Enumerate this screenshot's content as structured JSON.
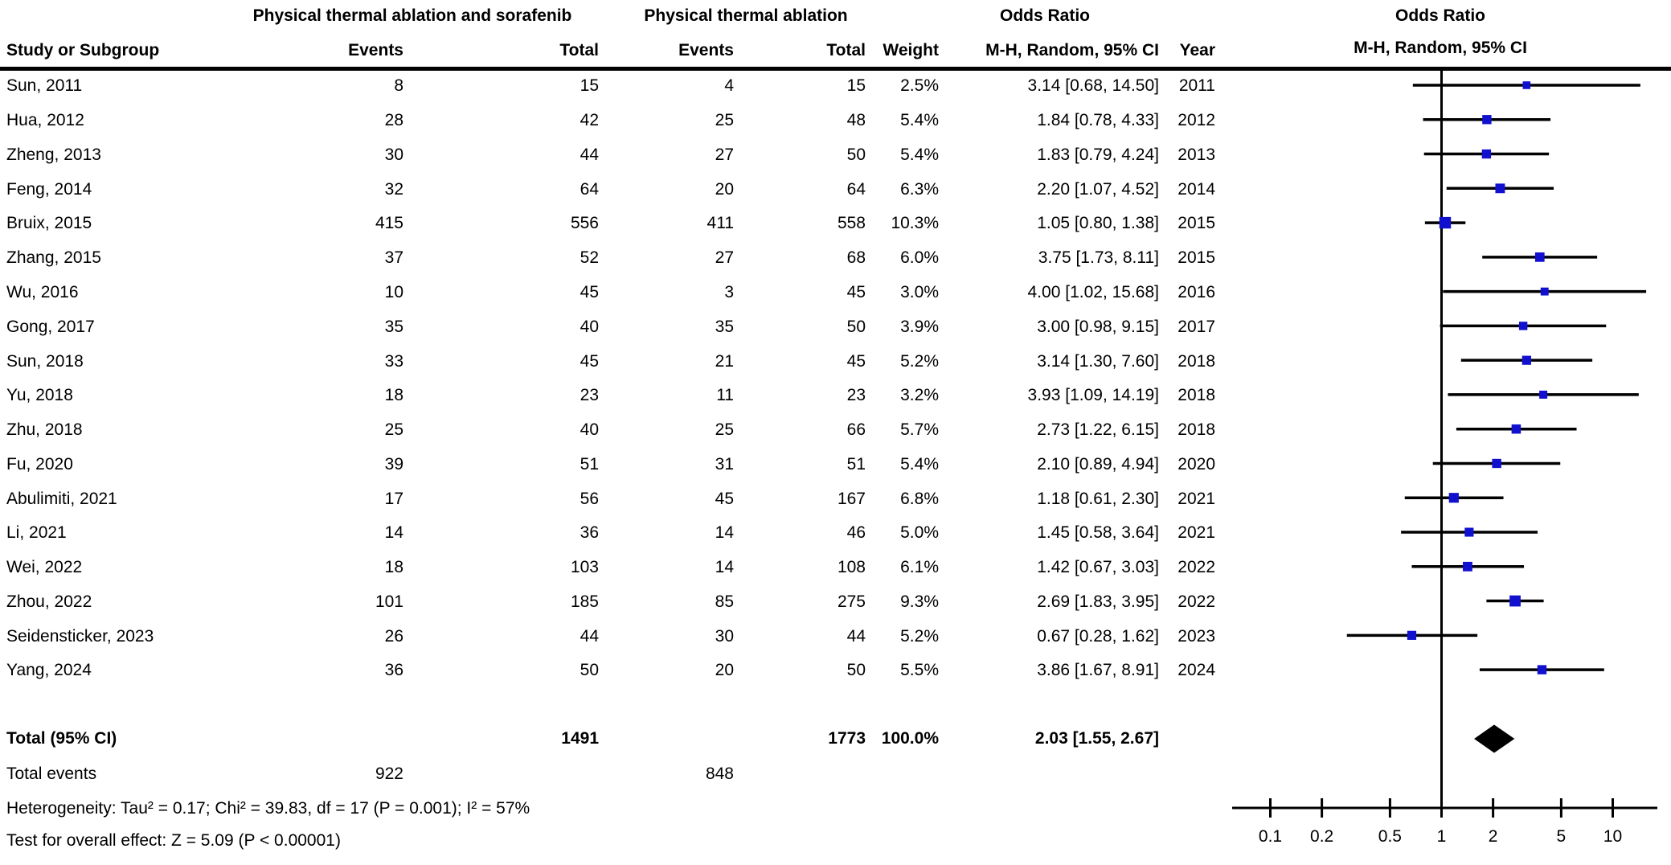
{
  "figure": {
    "header": {
      "group1": "Physical thermal ablation and sorafenib",
      "group2": "Physical thermal ablation",
      "or_table_title": "Odds Ratio",
      "or_plot_title": "Odds Ratio",
      "plot_subheader": "M-H, Random, 95% CI",
      "columns": {
        "study": "Study or Subgroup",
        "events1": "Events",
        "total1": "Total",
        "events2": "Events",
        "total2": "Total",
        "weight": "Weight",
        "or_ci": "M-H, Random, 95% CI",
        "year": "Year"
      }
    },
    "totals": {
      "label": "Total (95% CI)",
      "total1": "1491",
      "total2": "1773",
      "weight": "100.0%",
      "or_ci": "2.03 [1.55, 2.67]",
      "events_label": "Total events",
      "events1": "922",
      "events2": "848"
    },
    "footer": {
      "heterogeneity": "Heterogeneity: Tau² = 0.17; Chi² = 39.83, df = 17 (P = 0.001); I² = 57%",
      "overall_effect": "Test for overall effect: Z = 5.09 (P < 0.00001)"
    }
  },
  "rows": [
    {
      "study": "Sun, 2011",
      "events1": "8",
      "total1": "15",
      "events2": "4",
      "total2": "15",
      "weight": "2.5%",
      "or_ci": "3.14 [0.68, 14.50]",
      "year": "2011"
    },
    {
      "study": "Hua, 2012",
      "events1": "28",
      "total1": "42",
      "events2": "25",
      "total2": "48",
      "weight": "5.4%",
      "or_ci": "1.84 [0.78, 4.33]",
      "year": "2012"
    },
    {
      "study": "Zheng, 2013",
      "events1": "30",
      "total1": "44",
      "events2": "27",
      "total2": "50",
      "weight": "5.4%",
      "or_ci": "1.83 [0.79, 4.24]",
      "year": "2013"
    },
    {
      "study": "Feng, 2014",
      "events1": "32",
      "total1": "64",
      "events2": "20",
      "total2": "64",
      "weight": "6.3%",
      "or_ci": "2.20 [1.07, 4.52]",
      "year": "2014"
    },
    {
      "study": "Bruix, 2015",
      "events1": "415",
      "total1": "556",
      "events2": "411",
      "total2": "558",
      "weight": "10.3%",
      "or_ci": "1.05 [0.80, 1.38]",
      "year": "2015"
    },
    {
      "study": "Zhang, 2015",
      "events1": "37",
      "total1": "52",
      "events2": "27",
      "total2": "68",
      "weight": "6.0%",
      "or_ci": "3.75 [1.73, 8.11]",
      "year": "2015"
    },
    {
      "study": "Wu, 2016",
      "events1": "10",
      "total1": "45",
      "events2": "3",
      "total2": "45",
      "weight": "3.0%",
      "or_ci": "4.00 [1.02, 15.68]",
      "year": "2016"
    },
    {
      "study": "Gong, 2017",
      "events1": "35",
      "total1": "40",
      "events2": "35",
      "total2": "50",
      "weight": "3.9%",
      "or_ci": "3.00 [0.98, 9.15]",
      "year": "2017"
    },
    {
      "study": "Sun, 2018",
      "events1": "33",
      "total1": "45",
      "events2": "21",
      "total2": "45",
      "weight": "5.2%",
      "or_ci": "3.14 [1.30, 7.60]",
      "year": "2018"
    },
    {
      "study": "Yu, 2018",
      "events1": "18",
      "total1": "23",
      "events2": "11",
      "total2": "23",
      "weight": "3.2%",
      "or_ci": "3.93 [1.09, 14.19]",
      "year": "2018"
    },
    {
      "study": "Zhu, 2018",
      "events1": "25",
      "total1": "40",
      "events2": "25",
      "total2": "66",
      "weight": "5.7%",
      "or_ci": "2.73 [1.22, 6.15]",
      "year": "2018"
    },
    {
      "study": "Fu, 2020",
      "events1": "39",
      "total1": "51",
      "events2": "31",
      "total2": "51",
      "weight": "5.4%",
      "or_ci": "2.10 [0.89, 4.94]",
      "year": "2020"
    },
    {
      "study": "Abulimiti, 2021",
      "events1": "17",
      "total1": "56",
      "events2": "45",
      "total2": "167",
      "weight": "6.8%",
      "or_ci": "1.18 [0.61, 2.30]",
      "year": "2021"
    },
    {
      "study": "Li, 2021",
      "events1": "14",
      "total1": "36",
      "events2": "14",
      "total2": "46",
      "weight": "5.0%",
      "or_ci": "1.45 [0.58, 3.64]",
      "year": "2021"
    },
    {
      "study": "Wei, 2022",
      "events1": "18",
      "total1": "103",
      "events2": "14",
      "total2": "108",
      "weight": "6.1%",
      "or_ci": "1.42 [0.67, 3.03]",
      "year": "2022"
    },
    {
      "study": "Zhou, 2022",
      "events1": "101",
      "total1": "185",
      "events2": "85",
      "total2": "275",
      "weight": "9.3%",
      "or_ci": "2.69 [1.83, 3.95]",
      "year": "2022"
    },
    {
      "study": "Seidensticker, 2023",
      "events1": "26",
      "total1": "44",
      "events2": "30",
      "total2": "44",
      "weight": "5.2%",
      "or_ci": "0.67 [0.28, 1.62]",
      "year": "2023"
    },
    {
      "study": "Yang, 2024",
      "events1": "36",
      "total1": "50",
      "events2": "20",
      "total2": "50",
      "weight": "5.5%",
      "or_ci": "3.86 [1.67, 8.91]",
      "year": "2024"
    }
  ],
  "chart_data": {
    "type": "forest",
    "title": "Odds Ratio",
    "effect_measure": "M-H, Random, 95% CI",
    "x_scale": "log",
    "x_ticks": [
      0.1,
      0.2,
      0.5,
      1,
      2,
      5,
      10
    ],
    "null_line": 1,
    "studies": [
      {
        "name": "Sun, 2011",
        "or": 3.14,
        "ci_low": 0.68,
        "ci_high": 14.5,
        "weight_pct": 2.5
      },
      {
        "name": "Hua, 2012",
        "or": 1.84,
        "ci_low": 0.78,
        "ci_high": 4.33,
        "weight_pct": 5.4
      },
      {
        "name": "Zheng, 2013",
        "or": 1.83,
        "ci_low": 0.79,
        "ci_high": 4.24,
        "weight_pct": 5.4
      },
      {
        "name": "Feng, 2014",
        "or": 2.2,
        "ci_low": 1.07,
        "ci_high": 4.52,
        "weight_pct": 6.3
      },
      {
        "name": "Bruix, 2015",
        "or": 1.05,
        "ci_low": 0.8,
        "ci_high": 1.38,
        "weight_pct": 10.3
      },
      {
        "name": "Zhang, 2015",
        "or": 3.75,
        "ci_low": 1.73,
        "ci_high": 8.11,
        "weight_pct": 6.0
      },
      {
        "name": "Wu, 2016",
        "or": 4.0,
        "ci_low": 1.02,
        "ci_high": 15.68,
        "weight_pct": 3.0
      },
      {
        "name": "Gong, 2017",
        "or": 3.0,
        "ci_low": 0.98,
        "ci_high": 9.15,
        "weight_pct": 3.9
      },
      {
        "name": "Sun, 2018",
        "or": 3.14,
        "ci_low": 1.3,
        "ci_high": 7.6,
        "weight_pct": 5.2
      },
      {
        "name": "Yu, 2018",
        "or": 3.93,
        "ci_low": 1.09,
        "ci_high": 14.19,
        "weight_pct": 3.2
      },
      {
        "name": "Zhu, 2018",
        "or": 2.73,
        "ci_low": 1.22,
        "ci_high": 6.15,
        "weight_pct": 5.7
      },
      {
        "name": "Fu, 2020",
        "or": 2.1,
        "ci_low": 0.89,
        "ci_high": 4.94,
        "weight_pct": 5.4
      },
      {
        "name": "Abulimiti, 2021",
        "or": 1.18,
        "ci_low": 0.61,
        "ci_high": 2.3,
        "weight_pct": 6.8
      },
      {
        "name": "Li, 2021",
        "or": 1.45,
        "ci_low": 0.58,
        "ci_high": 3.64,
        "weight_pct": 5.0
      },
      {
        "name": "Wei, 2022",
        "or": 1.42,
        "ci_low": 0.67,
        "ci_high": 3.03,
        "weight_pct": 6.1
      },
      {
        "name": "Zhou, 2022",
        "or": 2.69,
        "ci_low": 1.83,
        "ci_high": 3.95,
        "weight_pct": 9.3
      },
      {
        "name": "Seidensticker, 2023",
        "or": 0.67,
        "ci_low": 0.28,
        "ci_high": 1.62,
        "weight_pct": 5.2
      },
      {
        "name": "Yang, 2024",
        "or": 3.86,
        "ci_low": 1.67,
        "ci_high": 8.91,
        "weight_pct": 5.5
      }
    ],
    "total": {
      "label": "Total (95% CI)",
      "or": 2.03,
      "ci_low": 1.55,
      "ci_high": 2.67,
      "weight_pct": 100.0
    },
    "colors": {
      "marker": "#1010CE",
      "line": "#000000",
      "diamond": "#000000"
    }
  }
}
